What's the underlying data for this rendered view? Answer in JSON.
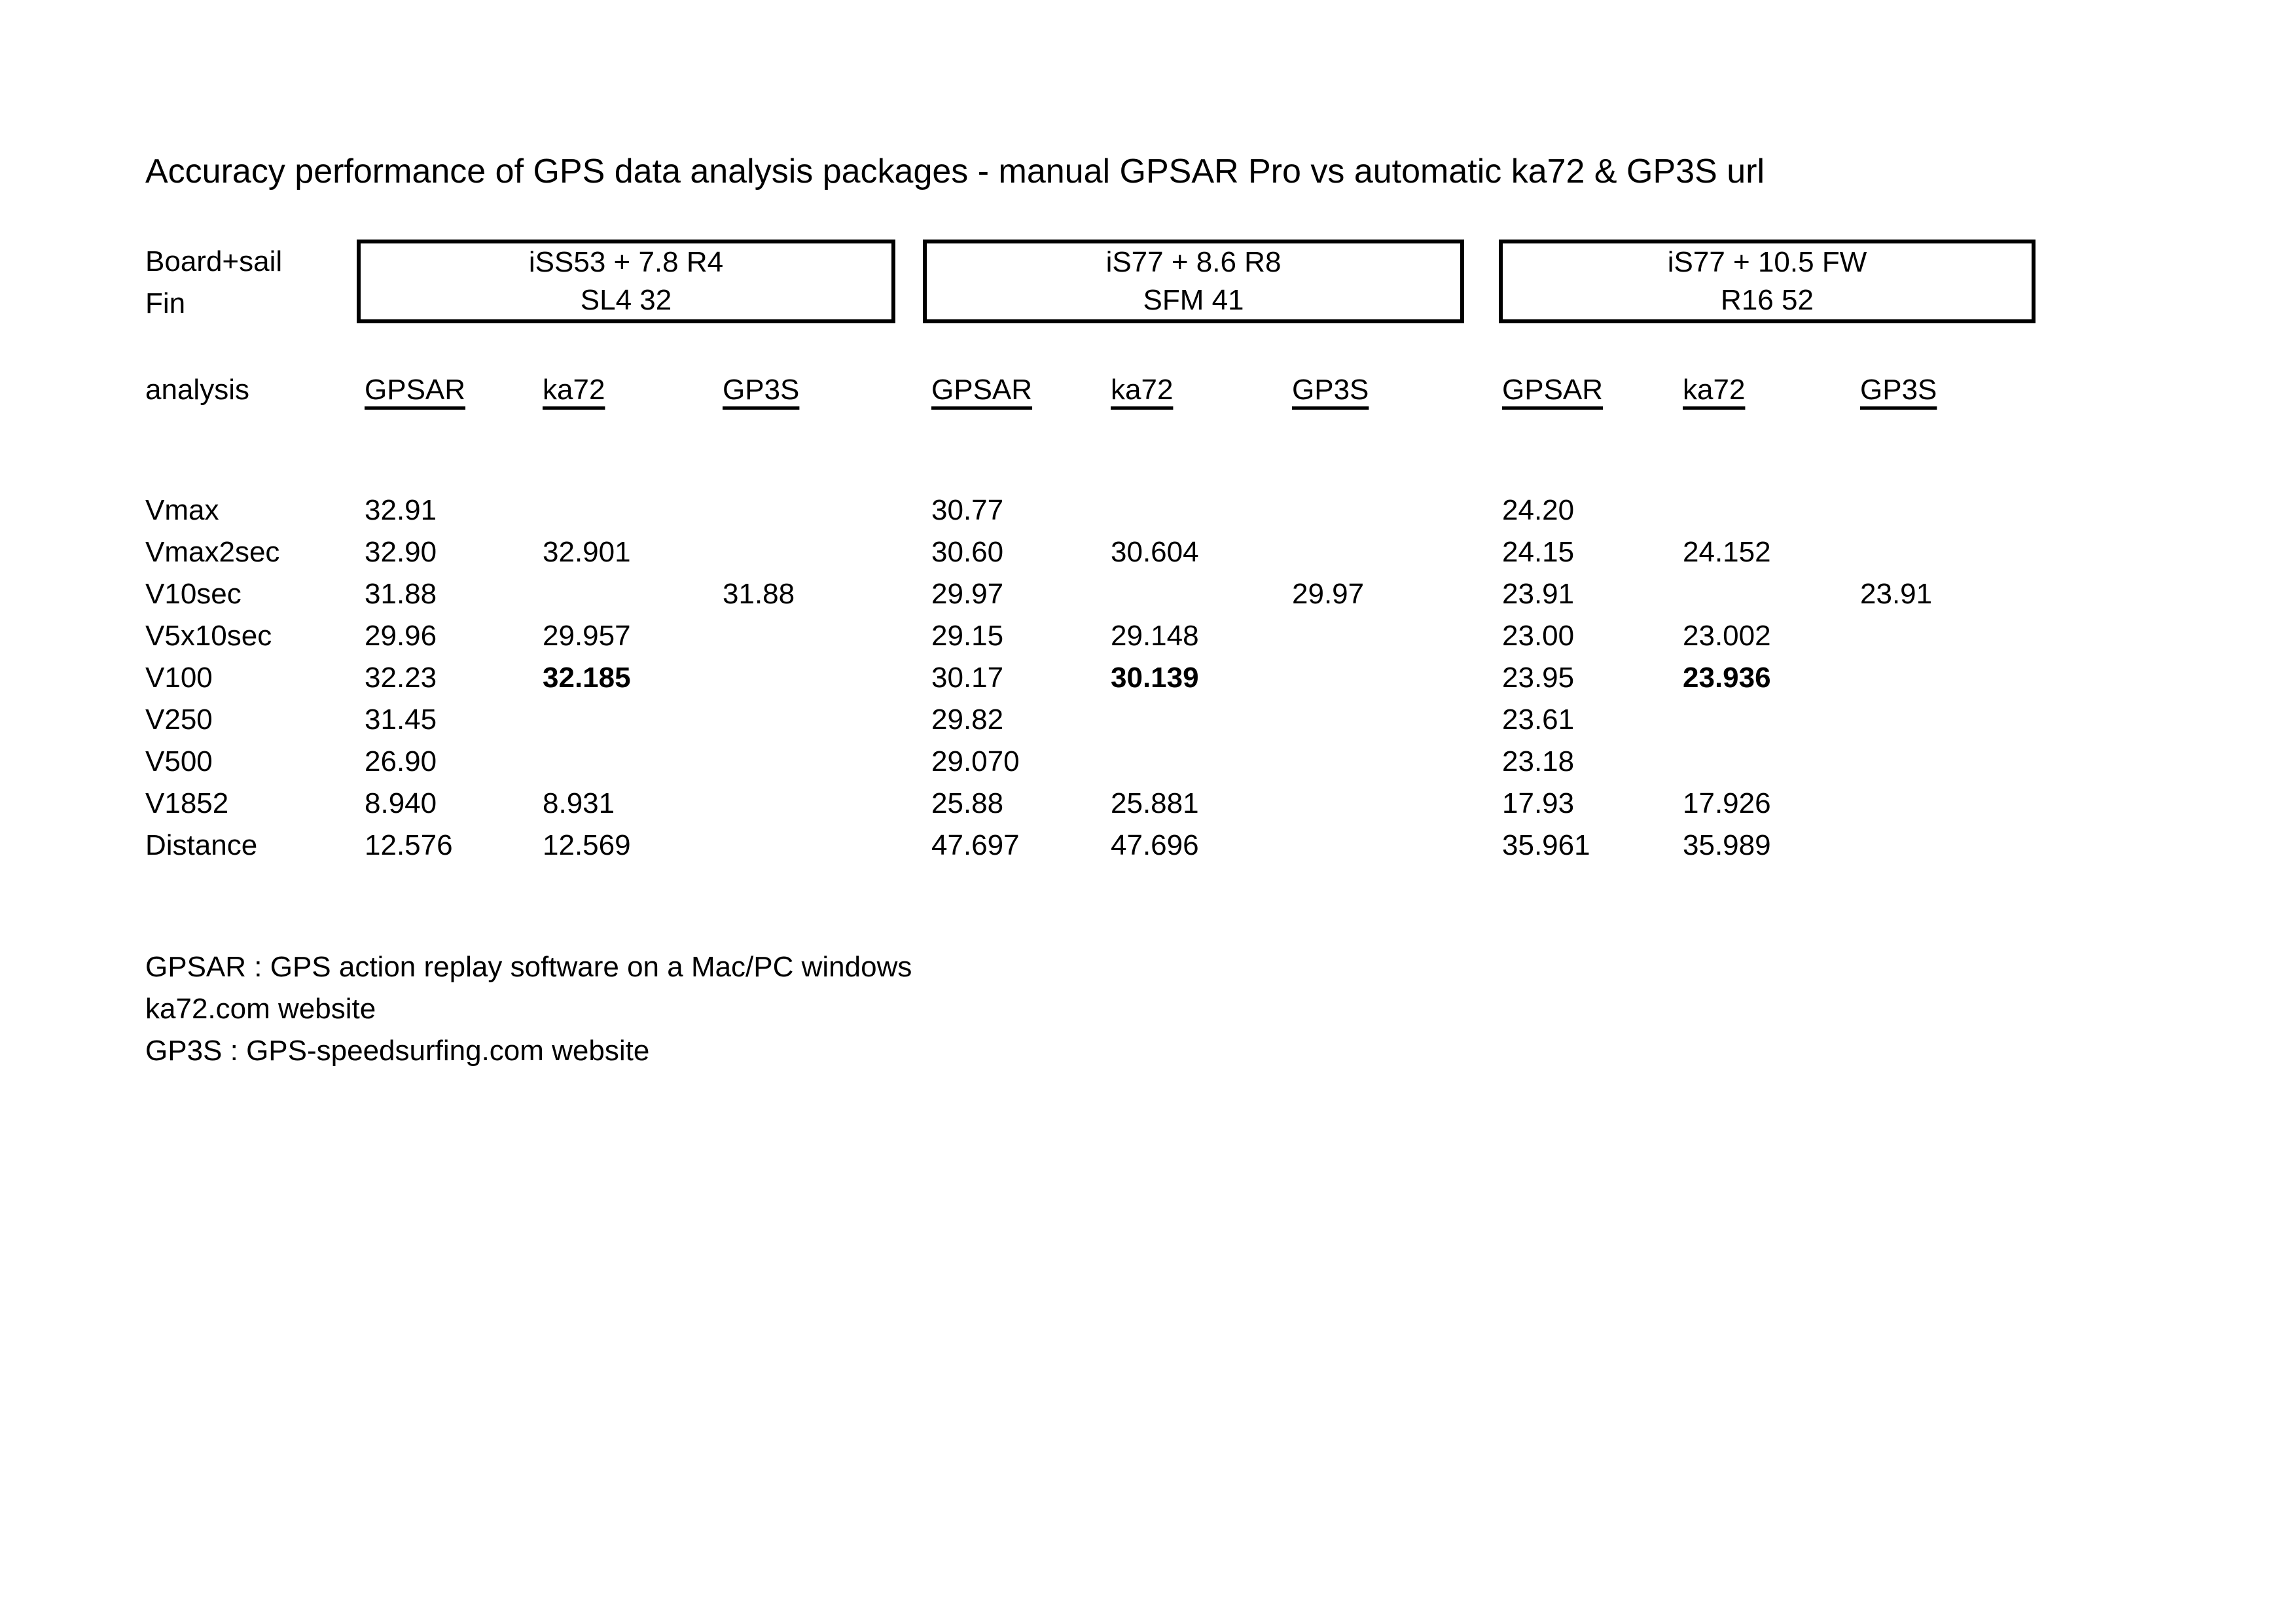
{
  "title": "Accuracy performance of GPS data analysis packages - manual GPSAR Pro vs automatic ka72 & GP3S url",
  "labels": {
    "board_sail": "Board+sail",
    "fin": "Fin",
    "analysis": "analysis"
  },
  "rigs": [
    {
      "board_sail": "iSS53 + 7.8 R4",
      "fin": "SL4 32"
    },
    {
      "board_sail": "iS77 + 8.6 R8",
      "fin": "SFM 41"
    },
    {
      "board_sail": "iS77 + 10.5 FW",
      "fin": "R16 52"
    }
  ],
  "column_headers": [
    "GPSAR",
    "ka72",
    "GP3S"
  ],
  "rows": [
    {
      "label": "Vmax",
      "cells": [
        {
          "text": "32.91",
          "bold": false
        },
        {
          "text": "",
          "bold": false
        },
        {
          "text": "",
          "bold": false
        },
        {
          "text": "30.77",
          "bold": false
        },
        {
          "text": "",
          "bold": false
        },
        {
          "text": "",
          "bold": false
        },
        {
          "text": "24.20",
          "bold": false
        },
        {
          "text": "",
          "bold": false
        },
        {
          "text": "",
          "bold": false
        }
      ]
    },
    {
      "label": "Vmax2sec",
      "cells": [
        {
          "text": "32.90",
          "bold": false
        },
        {
          "text": "32.901",
          "bold": false
        },
        {
          "text": "",
          "bold": false
        },
        {
          "text": "30.60",
          "bold": false
        },
        {
          "text": "30.604",
          "bold": false
        },
        {
          "text": "",
          "bold": false
        },
        {
          "text": "24.15",
          "bold": false
        },
        {
          "text": "24.152",
          "bold": false
        },
        {
          "text": "",
          "bold": false
        }
      ]
    },
    {
      "label": "V10sec",
      "cells": [
        {
          "text": "31.88",
          "bold": false
        },
        {
          "text": "",
          "bold": false
        },
        {
          "text": "31.88",
          "bold": false
        },
        {
          "text": "29.97",
          "bold": false
        },
        {
          "text": "",
          "bold": false
        },
        {
          "text": "29.97",
          "bold": false
        },
        {
          "text": "23.91",
          "bold": false
        },
        {
          "text": "",
          "bold": false
        },
        {
          "text": "23.91",
          "bold": false
        }
      ]
    },
    {
      "label": "V5x10sec",
      "cells": [
        {
          "text": "29.96",
          "bold": false
        },
        {
          "text": "29.957",
          "bold": false
        },
        {
          "text": "",
          "bold": false
        },
        {
          "text": "29.15",
          "bold": false
        },
        {
          "text": "29.148",
          "bold": false
        },
        {
          "text": "",
          "bold": false
        },
        {
          "text": "23.00",
          "bold": false
        },
        {
          "text": "23.002",
          "bold": false
        },
        {
          "text": "",
          "bold": false
        }
      ]
    },
    {
      "label": "V100",
      "cells": [
        {
          "text": "32.23",
          "bold": false
        },
        {
          "text": "32.185",
          "bold": true
        },
        {
          "text": "",
          "bold": false
        },
        {
          "text": "30.17",
          "bold": false
        },
        {
          "text": "30.139",
          "bold": true
        },
        {
          "text": "",
          "bold": false
        },
        {
          "text": "23.95",
          "bold": false
        },
        {
          "text": "23.936",
          "bold": true
        },
        {
          "text": "",
          "bold": false
        }
      ]
    },
    {
      "label": "V250",
      "cells": [
        {
          "text": "31.45",
          "bold": false
        },
        {
          "text": "",
          "bold": false
        },
        {
          "text": "",
          "bold": false
        },
        {
          "text": "29.82",
          "bold": false
        },
        {
          "text": "",
          "bold": false
        },
        {
          "text": "",
          "bold": false
        },
        {
          "text": "23.61",
          "bold": false
        },
        {
          "text": "",
          "bold": false
        },
        {
          "text": "",
          "bold": false
        }
      ]
    },
    {
      "label": "V500",
      "cells": [
        {
          "text": "26.90",
          "bold": false
        },
        {
          "text": "",
          "bold": false
        },
        {
          "text": "",
          "bold": false
        },
        {
          "text": "29.070",
          "bold": false
        },
        {
          "text": "",
          "bold": false
        },
        {
          "text": "",
          "bold": false
        },
        {
          "text": "23.18",
          "bold": false
        },
        {
          "text": "",
          "bold": false
        },
        {
          "text": "",
          "bold": false
        }
      ]
    },
    {
      "label": "V1852",
      "cells": [
        {
          "text": "8.940",
          "bold": false
        },
        {
          "text": "8.931",
          "bold": false
        },
        {
          "text": "",
          "bold": false
        },
        {
          "text": "25.88",
          "bold": false
        },
        {
          "text": "25.881",
          "bold": false
        },
        {
          "text": "",
          "bold": false
        },
        {
          "text": "17.93",
          "bold": false
        },
        {
          "text": "17.926",
          "bold": false
        },
        {
          "text": "",
          "bold": false
        }
      ]
    },
    {
      "label": "Distance",
      "cells": [
        {
          "text": "12.576",
          "bold": false
        },
        {
          "text": "12.569",
          "bold": false
        },
        {
          "text": "",
          "bold": false
        },
        {
          "text": "47.697",
          "bold": false
        },
        {
          "text": "47.696",
          "bold": false
        },
        {
          "text": "",
          "bold": false
        },
        {
          "text": "35.961",
          "bold": false
        },
        {
          "text": "35.989",
          "bold": false
        },
        {
          "text": "",
          "bold": false
        }
      ]
    }
  ],
  "footnotes": [
    "GPSAR : GPS action replay software on a Mac/PC windows",
    "ka72.com website",
    "GP3S : GPS-speedsurfing.com website"
  ],
  "colors": {
    "text": "#000000",
    "background": "#ffffff",
    "box_border": "#000000"
  }
}
